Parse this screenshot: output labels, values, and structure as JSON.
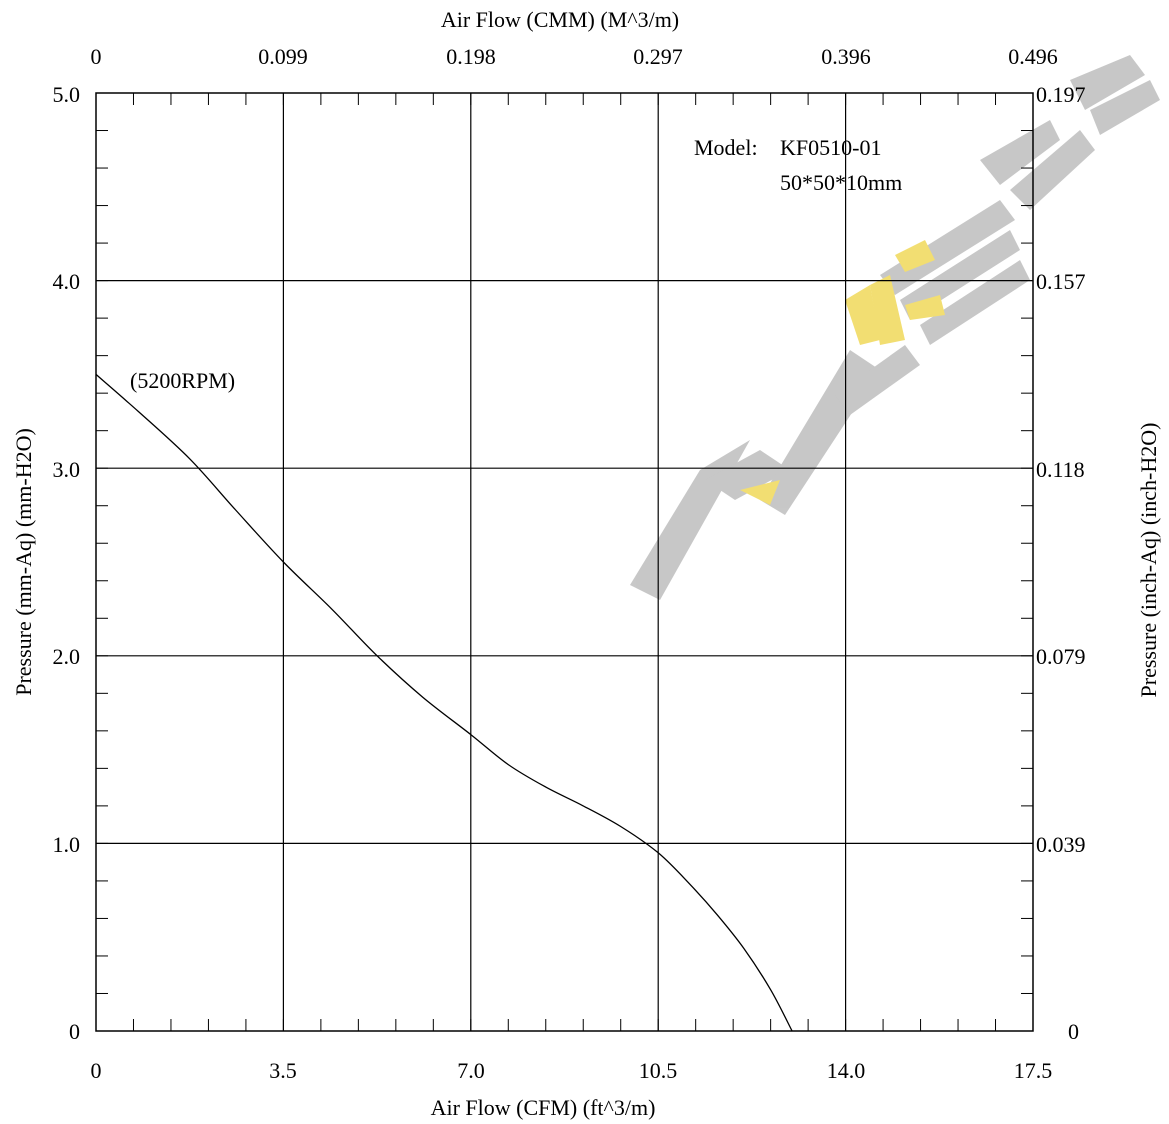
{
  "chart_data": {
    "type": "line",
    "xlabel": "Air Flow (CFM) (ft^3/m)",
    "x2label": "Air Flow (CMM) (M^3/m)",
    "ylabel": "Pressure (mm-Aq) (mm-H2O)",
    "y2label": "Pressure (inch-Aq) (inch-H2O)",
    "xlim": [
      0,
      17.5
    ],
    "ylim": [
      0,
      5.0
    ],
    "x_ticks": [
      "0",
      "3.5",
      "7.0",
      "10.5",
      "14.0",
      "17.5"
    ],
    "x2_ticks": [
      "0",
      "0.099",
      "0.198",
      "0.297",
      "0.396",
      "0.496"
    ],
    "y_ticks": [
      "0",
      "1.0",
      "2.0",
      "3.0",
      "4.0",
      "5.0"
    ],
    "y2_ticks": [
      "0",
      "0.039",
      "0.079",
      "0.118",
      "0.157",
      "0.197"
    ],
    "grid": true,
    "annotations": {
      "model_label": "Model:",
      "model_value": "KF0510-01",
      "size_value": "50*50*10mm",
      "speed_label": "(5200RPM)"
    },
    "series": [
      {
        "x": [
          0,
          0.8,
          1.75,
          2.6,
          3.5,
          4.4,
          5.25,
          6.1,
          7.0,
          7.7,
          8.4,
          9.1,
          9.8,
          10.5,
          11.1,
          11.6,
          12.1,
          12.6,
          13.0
        ],
        "y": [
          3.5,
          3.3,
          3.05,
          2.78,
          2.5,
          2.25,
          2.0,
          1.78,
          1.58,
          1.42,
          1.3,
          1.2,
          1.09,
          0.95,
          0.78,
          0.62,
          0.44,
          0.22,
          0.0
        ]
      }
    ]
  }
}
